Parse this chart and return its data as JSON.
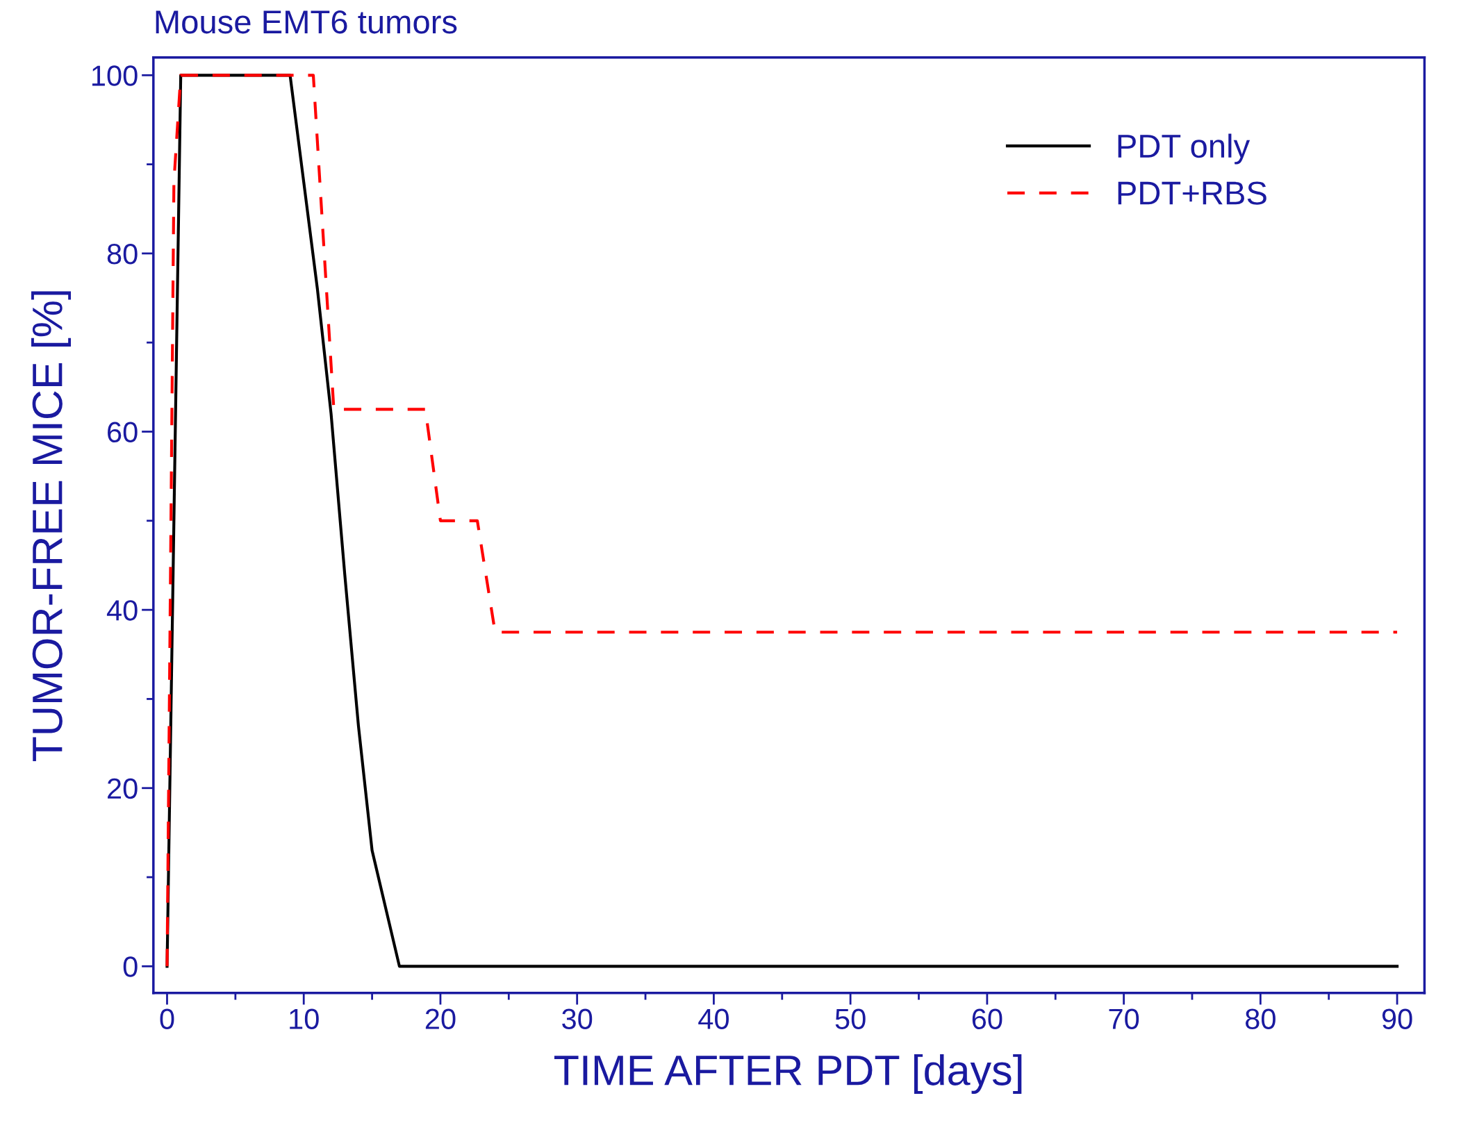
{
  "chart_data": {
    "type": "line",
    "title": "Mouse EMT6 tumors",
    "xlabel": "TIME AFTER PDT [days]",
    "ylabel": "TUMOR-FREE MICE [%]",
    "xlim": [
      -1,
      92
    ],
    "xticks": [
      0,
      10,
      20,
      30,
      40,
      50,
      60,
      70,
      80,
      90
    ],
    "ylim": [
      -3,
      102
    ],
    "yticks": [
      0,
      20,
      40,
      60,
      80,
      100
    ],
    "legend": "top right",
    "grid": false,
    "series": [
      {
        "name": "PDT only",
        "color": "#000000",
        "line_style": "solid",
        "x": [
          0,
          1,
          9,
          10,
          11,
          12,
          13,
          14,
          15,
          17,
          90
        ],
        "values": [
          0,
          100,
          100,
          88,
          76,
          62,
          44,
          27,
          13,
          0,
          0
        ]
      },
      {
        "name": "PDT+RBS",
        "color": "#ff0000",
        "line_style": "dashed",
        "x": [
          0,
          0.5,
          1,
          10.7,
          12.2,
          18.9,
          20,
          22.7,
          24,
          90
        ],
        "values": [
          0,
          88,
          100,
          100,
          62.5,
          62.5,
          50,
          50,
          37.5,
          37.5
        ]
      }
    ]
  }
}
